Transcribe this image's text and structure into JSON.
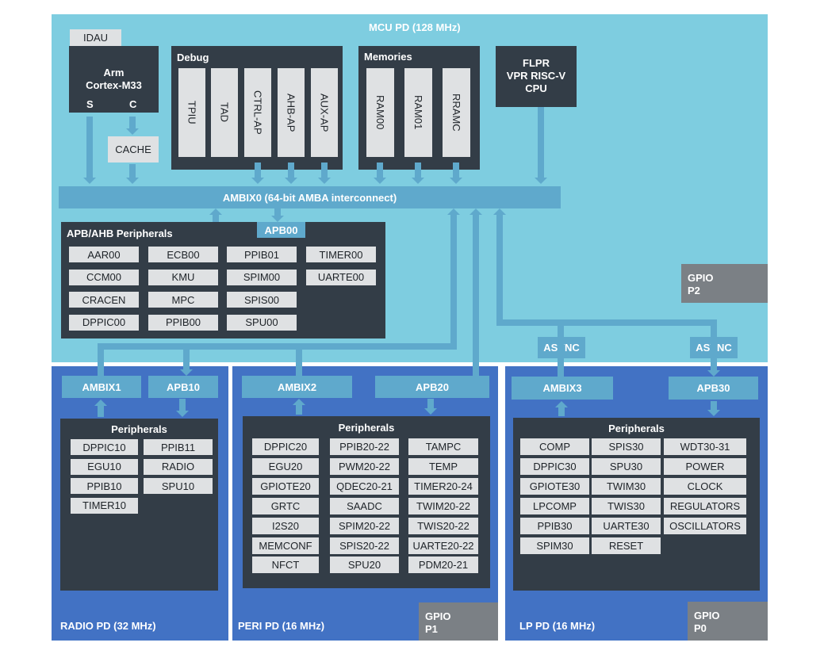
{
  "mcu": {
    "title": "MCU PD (128 MHz)",
    "idau": "IDAU",
    "cpu": {
      "line1": "Arm",
      "line2": "Cortex-M33",
      "port_s": "S",
      "port_c": "C"
    },
    "cache": "CACHE",
    "debug": {
      "title": "Debug",
      "items": [
        "TPIU",
        "TAD",
        "CTRL-AP",
        "AHB-AP",
        "AUX-AP"
      ]
    },
    "memories": {
      "title": "Memories",
      "items": [
        "RAM00",
        "RAM01",
        "RRAMC"
      ]
    },
    "flpr": {
      "line1": "FLPR",
      "line2": "VPR RISC-V",
      "line3": "CPU"
    },
    "ambix0": "AMBIX0 (64-bit AMBA interconnect)",
    "apb_ahb": {
      "title": "APB/AHB Peripherals",
      "bus": "APB00",
      "columns": [
        [
          "AAR00",
          "CCM00",
          "CRACEN",
          "DPPIC00"
        ],
        [
          "ECB00",
          "KMU",
          "MPC",
          "PPIB00"
        ],
        [
          "PPIB01",
          "SPIM00",
          "SPIS00",
          "SPU00"
        ],
        [
          "TIMER00",
          "UARTE00"
        ]
      ]
    },
    "gpio": {
      "line1": "GPIO",
      "line2": "P2"
    },
    "async_left": "ASYNC",
    "async_right": "ASYNC"
  },
  "radio": {
    "title": "RADIO PD (32 MHz)",
    "bus_left": "AMBIX1",
    "bus_right": "APB10",
    "peripherals_title": "Peripherals",
    "columns": [
      [
        "DPPIC10",
        "EGU10",
        "PPIB10",
        "TIMER10"
      ],
      [
        "PPIB11",
        "RADIO",
        "SPU10"
      ]
    ]
  },
  "peri": {
    "title": "PERI PD (16 MHz)",
    "bus_left": "AMBIX2",
    "bus_right": "APB20",
    "peripherals_title": "Peripherals",
    "columns": [
      [
        "DPPIC20",
        "EGU20",
        "GPIOTE20",
        "GRTC",
        "I2S20",
        "MEMCONF",
        "NFCT"
      ],
      [
        "PPIB20-22",
        "PWM20-22",
        "QDEC20-21",
        "SAADC",
        "SPIM20-22",
        "SPIS20-22",
        "SPU20"
      ],
      [
        "TAMPC",
        "TEMP",
        "TIMER20-24",
        "TWIM20-22",
        "TWIS20-22",
        "UARTE20-22",
        "PDM20-21"
      ]
    ],
    "gpio": {
      "line1": "GPIO",
      "line2": "P1"
    }
  },
  "lp": {
    "title": "LP PD (16 MHz)",
    "bus_left": "AMBIX3",
    "bus_right": "APB30",
    "peripherals_title": "Peripherals",
    "columns": [
      [
        "COMP",
        "DPPIC30",
        "GPIOTE30",
        "LPCOMP",
        "PPIB30",
        "SPIM30"
      ],
      [
        "SPIS30",
        "SPU30",
        "TWIM30",
        "TWIS30",
        "UARTE30",
        "RESET"
      ],
      [
        "WDT30-31",
        "POWER",
        "CLOCK",
        "REGULATORS",
        "OSCILLATORS"
      ]
    ],
    "gpio": {
      "line1": "GPIO",
      "line2": "P0"
    }
  },
  "colors": {
    "mcu_domain": "#7ecde0",
    "sub_domain": "#4272c4",
    "block": "#333d47",
    "bus": "#5fa9cc",
    "gpio": "#7b8085",
    "item": "#dfe1e3"
  }
}
